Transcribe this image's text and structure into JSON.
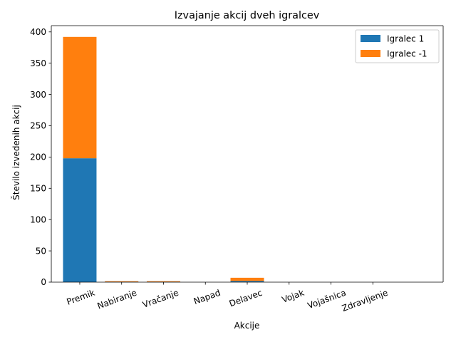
{
  "chart_data": {
    "type": "bar",
    "stacked": true,
    "title": "Izvajanje akcij dveh igralcev",
    "xlabel": "Akcije",
    "ylabel": "Število izvedenih akcij",
    "categories": [
      "Premik",
      "Nabiranje",
      "Vračanje",
      "Napad",
      "Delavec",
      "Vojak",
      "Vojašnica",
      "Zdravljenje"
    ],
    "series": [
      {
        "name": "Igralec 1",
        "color": "#1f77b4",
        "values": [
          198,
          0.5,
          0.5,
          0,
          2,
          0,
          0,
          0
        ]
      },
      {
        "name": "Igralec -1",
        "color": "#ff7f0e",
        "values": [
          194,
          1,
          1,
          0,
          5,
          0,
          0,
          0
        ]
      }
    ],
    "ylim": [
      0,
      410
    ],
    "yticks": [
      0,
      50,
      100,
      150,
      200,
      250,
      300,
      350,
      400
    ],
    "grid": false,
    "legend_position": "top-right"
  }
}
